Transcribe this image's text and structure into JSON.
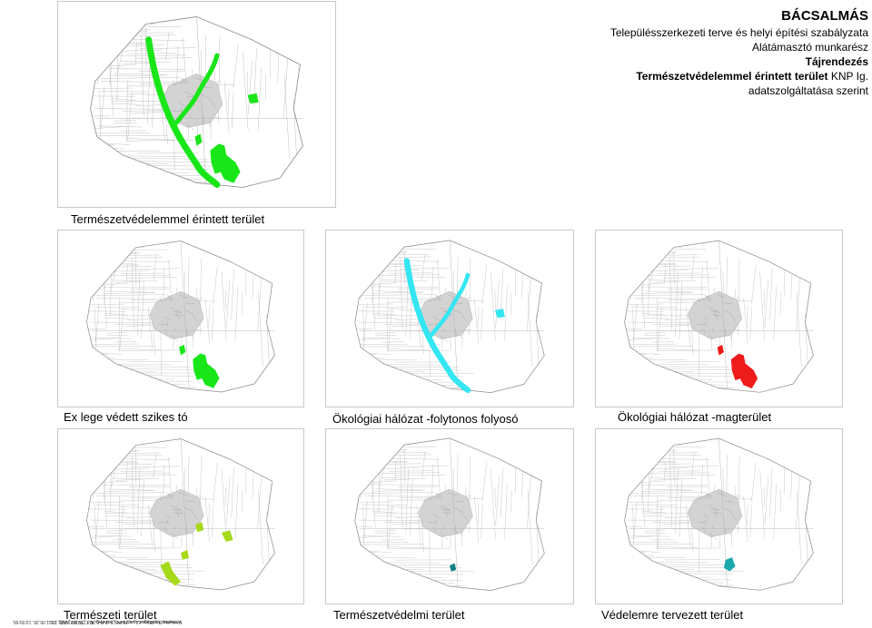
{
  "header": {
    "title": "BÁCSALMÁS",
    "line1": "Településszerkezeti terve és helyi építési szabályzata",
    "line2": "Alátámasztó munkarész",
    "line3": "Tájrendezés",
    "line4_bold": "Természetvédelemmel érintett terület",
    "line4_rest": " KNP Ig.",
    "line5": "adatszolgáltatása szerint"
  },
  "sidebar_text": {
    "line1": "V:\\munka\\bacsalmas\\1_rajz\\term_ved.dwg, ALT_TERM_VED, 2011.05.26. 13:09:56,",
    "line2": "lemhalmi, TxpfBpgs Laser 16 PCL5 (A4) 0.00 x 297.00 (MM), 1:1"
  },
  "panels": [
    {
      "caption": "Természetvédelemmel érintett terület",
      "color": "#19e619",
      "type": "combined"
    },
    {
      "caption": "Ex lege védett szikes tó",
      "color": "#19e619",
      "type": "core"
    },
    {
      "caption": "Ökológiai hálózat -folytonos folyosó",
      "color": "#33e6f2",
      "type": "corridor"
    },
    {
      "caption": "Ökológiai hálózat -magterület",
      "color": "#ee1b1b",
      "type": "core"
    },
    {
      "caption": "Természeti terület",
      "color": "#a6d91a",
      "type": "natural"
    },
    {
      "caption": "Természetvédelmi terület",
      "color": "#0f7f85",
      "type": "protected"
    },
    {
      "caption": "Védelemre tervezett terület",
      "color": "#1ba9ae",
      "type": "planned"
    }
  ]
}
